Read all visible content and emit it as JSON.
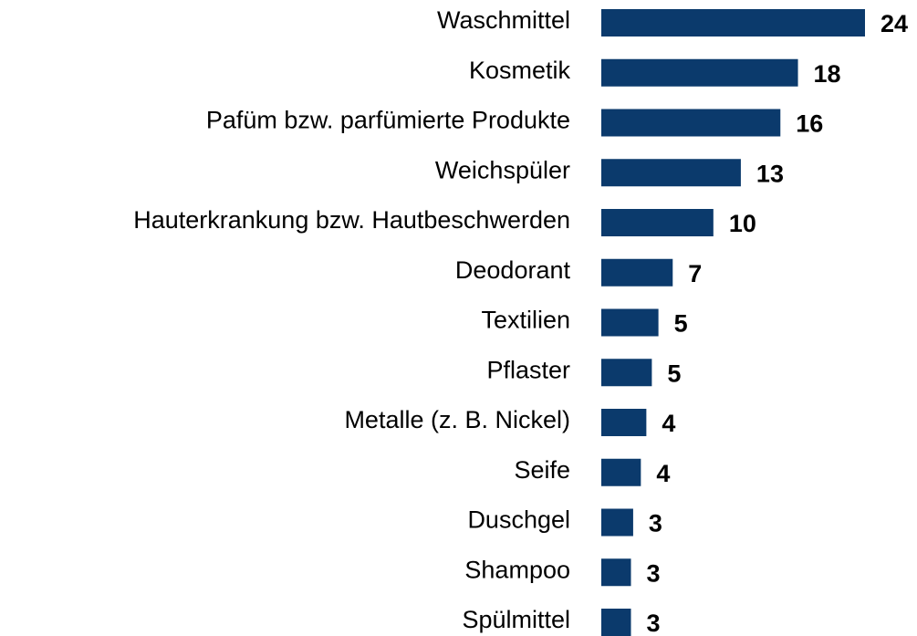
{
  "chart_data": {
    "type": "bar",
    "orientation": "horizontal",
    "color": "#0b3a6c",
    "categories": [
      "Waschmittel",
      "Kosmetik",
      "Pafüm bzw. parfümierte Produkte",
      "Weichspüler",
      "Hauterkrankung bzw. Hautbeschwerden",
      "Deodorant",
      "Textilien",
      "Pflaster",
      "Metalle (z. B. Nickel)",
      "Seife",
      "Duschgel",
      "Shampoo",
      "Spülmittel"
    ],
    "values": [
      24,
      17.9,
      16.3,
      12.7,
      10.2,
      6.5,
      5.2,
      4.6,
      4.1,
      3.6,
      2.9,
      2.7,
      2.7
    ],
    "value_labels": [
      "24",
      "18",
      "16",
      "13",
      "10",
      "7",
      "5",
      "5",
      "4",
      "4",
      "3",
      "3",
      "3"
    ]
  }
}
